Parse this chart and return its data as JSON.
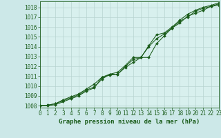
{
  "title": "Graphe pression niveau de la mer (hPa)",
  "fig_bg_color": "#cce8e8",
  "plot_bg_color": "#d8f0ee",
  "grid_color": "#b8d4d0",
  "line_color": "#1a5c1a",
  "xlim": [
    0,
    23
  ],
  "ylim": [
    1007.8,
    1018.6
  ],
  "yticks": [
    1008,
    1009,
    1010,
    1011,
    1012,
    1013,
    1014,
    1015,
    1016,
    1017,
    1018
  ],
  "xticks": [
    0,
    1,
    2,
    3,
    4,
    5,
    6,
    7,
    8,
    9,
    10,
    11,
    12,
    13,
    14,
    15,
    16,
    17,
    18,
    19,
    20,
    21,
    22,
    23
  ],
  "series1": [
    1008.0,
    1008.05,
    1008.2,
    1008.6,
    1008.9,
    1009.2,
    1009.7,
    1010.2,
    1010.9,
    1011.1,
    1011.2,
    1011.9,
    1012.4,
    1012.9,
    1014.0,
    1014.8,
    1015.3,
    1015.9,
    1016.4,
    1017.1,
    1017.4,
    1017.7,
    1018.1,
    1018.2
  ],
  "series2": [
    1008.0,
    1008.05,
    1008.2,
    1008.5,
    1008.8,
    1009.1,
    1009.6,
    1009.9,
    1010.7,
    1011.2,
    1011.4,
    1012.1,
    1012.9,
    1012.9,
    1012.9,
    1014.3,
    1015.1,
    1015.9,
    1016.6,
    1017.0,
    1017.6,
    1017.9,
    1018.1,
    1018.35
  ],
  "series3": [
    1008.0,
    1008.0,
    1008.1,
    1008.4,
    1008.7,
    1009.0,
    1009.5,
    1009.8,
    1010.9,
    1011.2,
    1011.2,
    1012.0,
    1012.7,
    1012.9,
    1014.1,
    1015.2,
    1015.4,
    1016.0,
    1016.7,
    1017.3,
    1017.7,
    1018.0,
    1018.2,
    1018.45
  ],
  "tick_fontsize": 5.5,
  "xlabel_fontsize": 6.5,
  "marker_size": 2.0,
  "line_width": 0.75
}
